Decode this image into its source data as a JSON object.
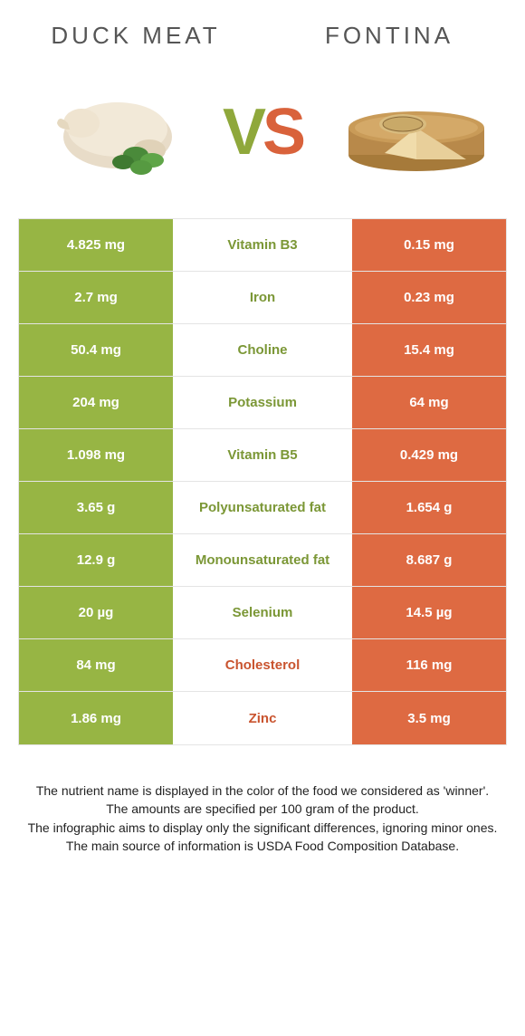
{
  "colors": {
    "left": "#97b544",
    "right": "#de6a42",
    "left_text": "#7b9736",
    "right_text": "#c9542f"
  },
  "header": {
    "left_title": "Duck meat",
    "right_title": "Fontina",
    "vs_v": "V",
    "vs_s": "S"
  },
  "rows": [
    {
      "left": "4.825 mg",
      "label": "Vitamin B3",
      "right": "0.15 mg",
      "winner": "left"
    },
    {
      "left": "2.7 mg",
      "label": "Iron",
      "right": "0.23 mg",
      "winner": "left"
    },
    {
      "left": "50.4 mg",
      "label": "Choline",
      "right": "15.4 mg",
      "winner": "left"
    },
    {
      "left": "204 mg",
      "label": "Potassium",
      "right": "64 mg",
      "winner": "left"
    },
    {
      "left": "1.098 mg",
      "label": "Vitamin B5",
      "right": "0.429 mg",
      "winner": "left"
    },
    {
      "left": "3.65 g",
      "label": "Polyunsaturated fat",
      "right": "1.654 g",
      "winner": "left"
    },
    {
      "left": "12.9 g",
      "label": "Monounsaturated fat",
      "right": "8.687 g",
      "winner": "left"
    },
    {
      "left": "20 µg",
      "label": "Selenium",
      "right": "14.5 µg",
      "winner": "left"
    },
    {
      "left": "84 mg",
      "label": "Cholesterol",
      "right": "116 mg",
      "winner": "right"
    },
    {
      "left": "1.86 mg",
      "label": "Zinc",
      "right": "3.5 mg",
      "winner": "right"
    }
  ],
  "footer": {
    "line1": "The nutrient name is displayed in the color of the food we considered as 'winner'.",
    "line2": "The amounts are specified per 100 gram of the product.",
    "line3": "The infographic aims to display only the significant differences, ignoring minor ones.",
    "line4": "The main source of information is USDA Food Composition Database."
  }
}
